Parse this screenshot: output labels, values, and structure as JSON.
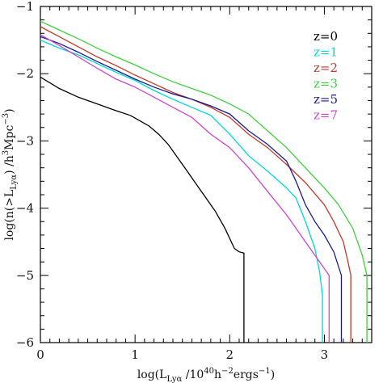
{
  "chart_data": {
    "type": "line",
    "title": "",
    "xlabel": "log(L_Lyα /10^40 h^-2 ergs^-1)",
    "ylabel": "log(n(>L_Lyα) /h^3 Mpc^-3)",
    "xlabel_parts": {
      "pre": "log(L",
      "sub": "Lyα",
      "mid": " /10",
      "sup1": "40",
      "mid2": "h",
      "sup2": "−2",
      "mid3": "ergs",
      "sup3": "−1",
      "post": ")"
    },
    "ylabel_parts": {
      "pre": "log(n(>L",
      "sub": "Lyα",
      "mid": ") /h",
      "sup1": "3",
      "mid2": "Mpc",
      "sup2": "−3",
      "post": ")"
    },
    "xlim": [
      0,
      3.5
    ],
    "ylim": [
      -6,
      -1
    ],
    "xticks": [
      0,
      1,
      2,
      3
    ],
    "yticks": [
      -6,
      -5,
      -4,
      -3,
      -2,
      -1
    ],
    "grid": false,
    "legend_position": "top-right",
    "series": [
      {
        "name": "z=0",
        "color": "#000000",
        "points": [
          [
            0.0,
            -2.05
          ],
          [
            0.2,
            -2.22
          ],
          [
            0.4,
            -2.35
          ],
          [
            0.6,
            -2.45
          ],
          [
            0.8,
            -2.55
          ],
          [
            0.95,
            -2.62
          ],
          [
            1.05,
            -2.7
          ],
          [
            1.15,
            -2.78
          ],
          [
            1.25,
            -2.9
          ],
          [
            1.35,
            -3.05
          ],
          [
            1.45,
            -3.25
          ],
          [
            1.55,
            -3.45
          ],
          [
            1.65,
            -3.65
          ],
          [
            1.75,
            -3.85
          ],
          [
            1.85,
            -4.05
          ],
          [
            1.95,
            -4.3
          ],
          [
            2.05,
            -4.6
          ],
          [
            2.1,
            -4.65
          ],
          [
            2.15,
            -4.67
          ],
          [
            2.15,
            -6.0
          ]
        ]
      },
      {
        "name": "z=1",
        "color": "#00d6d6",
        "points": [
          [
            0.0,
            -1.5
          ],
          [
            0.2,
            -1.62
          ],
          [
            0.4,
            -1.72
          ],
          [
            0.6,
            -1.85
          ],
          [
            0.8,
            -1.98
          ],
          [
            1.0,
            -2.1
          ],
          [
            1.2,
            -2.25
          ],
          [
            1.4,
            -2.38
          ],
          [
            1.6,
            -2.5
          ],
          [
            1.8,
            -2.62
          ],
          [
            2.0,
            -2.9
          ],
          [
            2.2,
            -3.22
          ],
          [
            2.4,
            -3.45
          ],
          [
            2.6,
            -3.7
          ],
          [
            2.7,
            -3.85
          ],
          [
            2.8,
            -4.2
          ],
          [
            2.9,
            -4.6
          ],
          [
            2.95,
            -4.95
          ],
          [
            2.98,
            -5.3
          ],
          [
            2.98,
            -6.0
          ]
        ]
      },
      {
        "name": "z=2",
        "color": "#c0392b",
        "points": [
          [
            0.0,
            -1.3
          ],
          [
            0.2,
            -1.45
          ],
          [
            0.4,
            -1.6
          ],
          [
            0.6,
            -1.75
          ],
          [
            0.8,
            -1.88
          ],
          [
            1.0,
            -2.02
          ],
          [
            1.2,
            -2.15
          ],
          [
            1.4,
            -2.28
          ],
          [
            1.6,
            -2.38
          ],
          [
            1.8,
            -2.5
          ],
          [
            2.0,
            -2.65
          ],
          [
            2.2,
            -2.9
          ],
          [
            2.4,
            -3.1
          ],
          [
            2.6,
            -3.35
          ],
          [
            2.8,
            -3.62
          ],
          [
            3.0,
            -3.95
          ],
          [
            3.1,
            -4.2
          ],
          [
            3.2,
            -4.5
          ],
          [
            3.25,
            -4.8
          ],
          [
            3.28,
            -5.0
          ],
          [
            3.28,
            -6.0
          ]
        ]
      },
      {
        "name": "z=3",
        "color": "#3ecf3e",
        "points": [
          [
            0.0,
            -1.22
          ],
          [
            0.2,
            -1.35
          ],
          [
            0.4,
            -1.48
          ],
          [
            0.6,
            -1.62
          ],
          [
            0.8,
            -1.75
          ],
          [
            1.0,
            -1.87
          ],
          [
            1.2,
            -2.0
          ],
          [
            1.4,
            -2.12
          ],
          [
            1.6,
            -2.22
          ],
          [
            1.8,
            -2.32
          ],
          [
            2.0,
            -2.45
          ],
          [
            2.2,
            -2.6
          ],
          [
            2.4,
            -2.85
          ],
          [
            2.6,
            -3.1
          ],
          [
            2.8,
            -3.4
          ],
          [
            3.0,
            -3.7
          ],
          [
            3.15,
            -3.95
          ],
          [
            3.3,
            -4.3
          ],
          [
            3.4,
            -4.7
          ],
          [
            3.45,
            -5.0
          ],
          [
            3.45,
            -6.0
          ]
        ]
      },
      {
        "name": "z=5",
        "color": "#1a1a8c",
        "points": [
          [
            0.0,
            -1.45
          ],
          [
            0.2,
            -1.55
          ],
          [
            0.4,
            -1.68
          ],
          [
            0.6,
            -1.82
          ],
          [
            0.8,
            -1.95
          ],
          [
            1.0,
            -2.08
          ],
          [
            1.2,
            -2.2
          ],
          [
            1.4,
            -2.3
          ],
          [
            1.6,
            -2.38
          ],
          [
            1.8,
            -2.48
          ],
          [
            2.0,
            -2.6
          ],
          [
            2.2,
            -2.85
          ],
          [
            2.4,
            -3.05
          ],
          [
            2.6,
            -3.3
          ],
          [
            2.7,
            -3.6
          ],
          [
            2.8,
            -3.95
          ],
          [
            2.9,
            -4.2
          ],
          [
            3.0,
            -4.4
          ],
          [
            3.1,
            -4.65
          ],
          [
            3.18,
            -5.0
          ],
          [
            3.18,
            -6.0
          ]
        ]
      },
      {
        "name": "z=7",
        "color": "#cc44cc",
        "points": [
          [
            0.0,
            -1.42
          ],
          [
            0.2,
            -1.58
          ],
          [
            0.4,
            -1.75
          ],
          [
            0.6,
            -1.92
          ],
          [
            0.8,
            -2.08
          ],
          [
            1.0,
            -2.2
          ],
          [
            1.2,
            -2.35
          ],
          [
            1.4,
            -2.5
          ],
          [
            1.6,
            -2.65
          ],
          [
            1.8,
            -2.9
          ],
          [
            2.0,
            -3.1
          ],
          [
            2.2,
            -3.4
          ],
          [
            2.4,
            -3.75
          ],
          [
            2.6,
            -4.1
          ],
          [
            2.8,
            -4.5
          ],
          [
            2.95,
            -4.8
          ],
          [
            3.05,
            -5.0
          ],
          [
            3.05,
            -6.0
          ]
        ]
      }
    ]
  }
}
